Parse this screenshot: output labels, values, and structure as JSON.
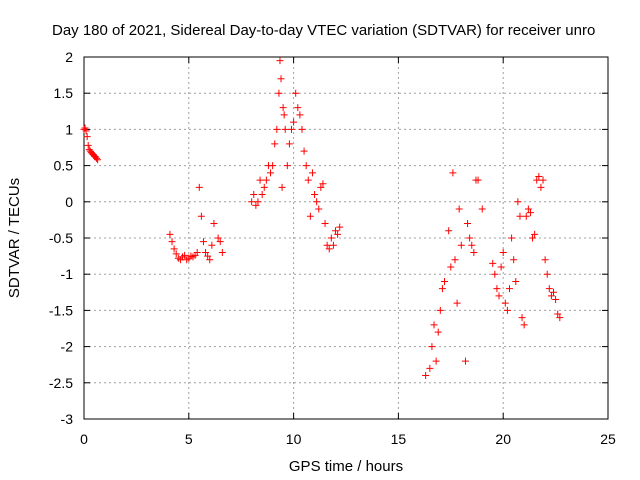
{
  "chart_data": {
    "type": "scatter",
    "title": "Day 180 of 2021, Sidereal Day-to-day VTEC variation (SDTVAR) for receiver unro",
    "xlabel": "GPS time / hours",
    "ylabel": "SDTVAR / TECUs",
    "xlim": [
      0,
      25
    ],
    "ylim": [
      -3,
      2
    ],
    "xticks": [
      0,
      5,
      10,
      15,
      20,
      25
    ],
    "xtick_labels": [
      "0",
      "5",
      "10",
      "15",
      "20",
      "25"
    ],
    "yticks": [
      -3,
      -2.5,
      -2,
      -1.5,
      -1,
      -0.5,
      0,
      0.5,
      1,
      1.5,
      2
    ],
    "ytick_labels": [
      "-3",
      "-2.5",
      "-2",
      "-1.5",
      "-1",
      "-0.5",
      "0",
      "0.5",
      "1",
      "1.5",
      "2"
    ],
    "grid": true,
    "marker": "+",
    "series": [
      {
        "name": "SDTVAR",
        "color": "#ff0000",
        "x": [
          0.0,
          0.05,
          0.1,
          0.15,
          0.2,
          0.25,
          0.3,
          0.35,
          0.4,
          0.45,
          0.5,
          0.55,
          0.6,
          0.65,
          4.1,
          4.2,
          4.3,
          4.4,
          4.5,
          4.6,
          4.7,
          4.8,
          4.9,
          5.0,
          5.1,
          5.2,
          5.3,
          5.4,
          5.5,
          5.6,
          5.7,
          5.8,
          5.9,
          6.0,
          6.1,
          6.2,
          6.4,
          6.5,
          6.6,
          8.0,
          8.1,
          8.2,
          8.3,
          8.4,
          8.5,
          8.6,
          8.7,
          8.8,
          8.9,
          9.0,
          9.1,
          9.2,
          9.3,
          9.35,
          9.4,
          9.45,
          9.5,
          9.55,
          9.6,
          9.7,
          9.8,
          9.9,
          10.0,
          10.1,
          10.2,
          10.3,
          10.4,
          10.5,
          10.6,
          10.7,
          10.8,
          10.9,
          11.0,
          11.1,
          11.2,
          11.3,
          11.4,
          11.5,
          11.6,
          11.7,
          11.8,
          11.9,
          12.0,
          12.1,
          12.2,
          16.3,
          16.5,
          16.6,
          16.7,
          16.8,
          16.9,
          17.0,
          17.1,
          17.2,
          17.4,
          17.5,
          17.6,
          17.7,
          17.8,
          17.9,
          18.0,
          18.2,
          18.3,
          18.4,
          18.5,
          18.6,
          18.7,
          18.8,
          19.0,
          19.5,
          19.6,
          19.7,
          19.8,
          19.9,
          20.0,
          20.1,
          20.2,
          20.3,
          20.4,
          20.5,
          20.6,
          20.7,
          20.8,
          20.9,
          21.0,
          21.1,
          21.2,
          21.3,
          21.4,
          21.5,
          21.6,
          21.7,
          21.8,
          21.9,
          22.0,
          22.1,
          22.2,
          22.3,
          22.4,
          22.5,
          22.6,
          22.7
        ],
        "y": [
          1.0,
          1.02,
          0.98,
          0.9,
          0.78,
          0.72,
          0.7,
          0.68,
          0.66,
          0.65,
          0.63,
          0.62,
          0.6,
          0.58,
          -0.45,
          -0.55,
          -0.65,
          -0.72,
          -0.78,
          -0.8,
          -0.76,
          -0.74,
          -0.8,
          -0.78,
          -0.75,
          -0.76,
          -0.74,
          -0.7,
          0.2,
          -0.2,
          -0.55,
          -0.7,
          -0.75,
          -0.8,
          -0.6,
          -0.3,
          -0.5,
          -0.55,
          -0.7,
          0.0,
          0.1,
          -0.05,
          0.0,
          0.3,
          0.1,
          0.2,
          0.3,
          0.5,
          0.4,
          0.5,
          0.8,
          1.0,
          1.5,
          1.95,
          1.7,
          0.2,
          1.3,
          1.2,
          1.0,
          0.5,
          0.8,
          1.0,
          1.1,
          1.5,
          1.3,
          1.2,
          1.0,
          0.7,
          0.5,
          0.3,
          -0.2,
          0.4,
          0.1,
          0.0,
          -0.1,
          0.2,
          0.25,
          -0.3,
          -0.6,
          -0.65,
          -0.5,
          -0.6,
          -0.4,
          -0.45,
          -0.35,
          -2.4,
          -2.3,
          -2.0,
          -1.7,
          -2.2,
          -1.8,
          -1.5,
          -1.2,
          -1.1,
          -0.4,
          -0.9,
          0.4,
          -0.8,
          -1.4,
          -0.1,
          -0.6,
          -2.2,
          -0.3,
          -0.5,
          -0.6,
          -0.7,
          0.3,
          0.3,
          -0.1,
          -0.85,
          -1.0,
          -1.2,
          -1.3,
          -0.9,
          -0.7,
          -1.4,
          -1.5,
          -1.2,
          -0.5,
          -0.8,
          -1.1,
          0.0,
          -0.2,
          -1.6,
          -1.7,
          -0.2,
          -0.1,
          -0.15,
          -0.5,
          -0.45,
          0.3,
          0.35,
          0.2,
          0.3,
          -0.8,
          -1.0,
          -1.2,
          -1.3,
          -1.25,
          -1.35,
          -1.55,
          -1.6
        ]
      }
    ]
  }
}
